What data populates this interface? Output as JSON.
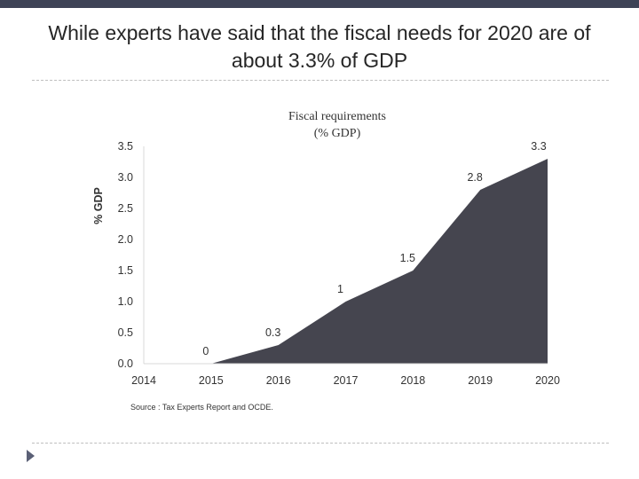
{
  "slide": {
    "title": "While experts have said that the fiscal needs for 2020 are of about 3.3% of GDP"
  },
  "colors": {
    "accent_bar": "#3e4356",
    "area_fill": "#45454f"
  },
  "chart_data": {
    "type": "area",
    "title": [
      "Fiscal requirements",
      "(% GDP)"
    ],
    "ylabel": "% GDP",
    "xlabel": "",
    "x": [
      "2014",
      "2015",
      "2016",
      "2017",
      "2018",
      "2019",
      "2020"
    ],
    "series": [
      {
        "name": "Fiscal requirements",
        "values": [
          0,
          0,
          0.3,
          1,
          1.5,
          2.8,
          3.3
        ]
      }
    ],
    "data_labels": [
      "",
      "0",
      "0.3",
      "1",
      "1.5",
      "2.8",
      "3.3"
    ],
    "yticks": [
      "0.0",
      "0.5",
      "1.0",
      "1.5",
      "2.0",
      "2.5",
      "3.0",
      "3.5"
    ],
    "ylim": [
      0,
      3.5
    ],
    "grid": false,
    "source": "Source : Tax Experts Report and OCDE."
  }
}
